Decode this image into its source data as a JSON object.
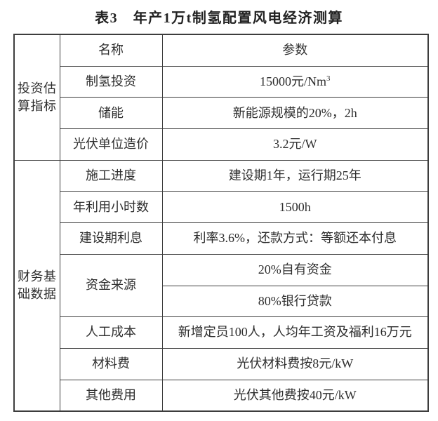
{
  "page": {
    "title": "表3　年产1万t制氢配置风电经济测算"
  },
  "table": {
    "header": {
      "name": "名称",
      "param": "参数"
    },
    "groups": [
      {
        "label": "投资估算指标",
        "rows": [
          {
            "name": "制氢投资",
            "value": "15000元/Nm",
            "value_sup": "3"
          },
          {
            "name": "储能",
            "value": "新能源规模的20%，2h"
          },
          {
            "name": "光伏单位造价",
            "value": "3.2元/W"
          }
        ]
      },
      {
        "label": "财务基础数据",
        "rows": [
          {
            "name": "施工进度",
            "value": "建设期1年，运行期25年"
          },
          {
            "name": "年利用小时数",
            "value": "1500h"
          },
          {
            "name": "建设期利息",
            "value": "利率3.6%，还款方式：等额还本付息"
          },
          {
            "name": "资金来源",
            "value": "20%自有资金",
            "value2": "80%银行贷款"
          },
          {
            "name": "人工成本",
            "value": "新增定员100人，人均年工资及福利16万元"
          },
          {
            "name": "材料费",
            "value": "光伏材料费按8元/kW"
          },
          {
            "name": "其他费用",
            "value": "光伏其他费按40元/kW"
          }
        ]
      }
    ],
    "colors": {
      "border": "#3d3d3d",
      "text": "#2e2e2e",
      "background": "#ffffff"
    }
  }
}
